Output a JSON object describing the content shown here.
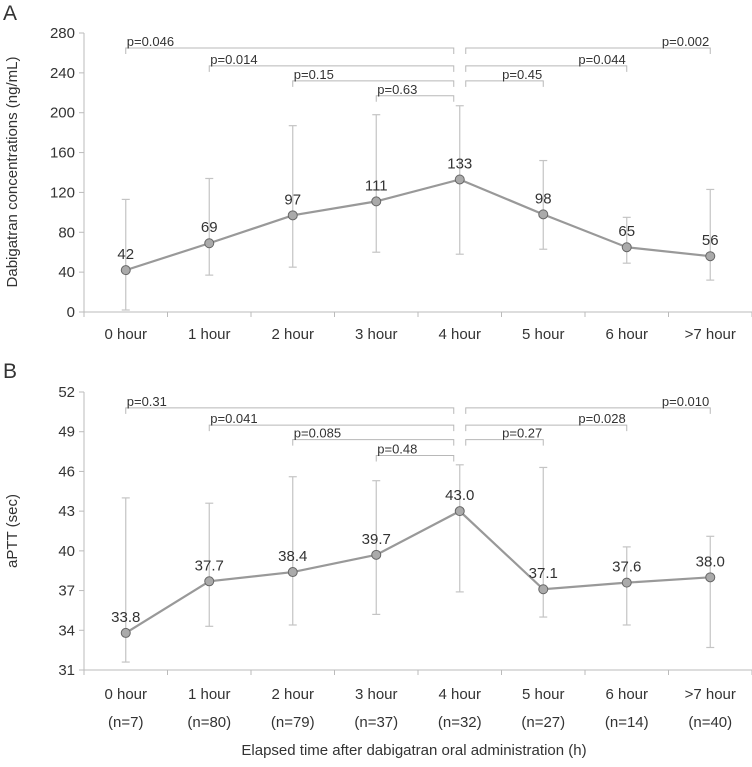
{
  "chart_data": [
    {
      "type": "line",
      "panel_label": "A",
      "ylabel": "Dabigatran concentrations  (ng/mL)",
      "ylim": [
        0,
        280
      ],
      "yticks": [
        0,
        40,
        80,
        120,
        160,
        200,
        240,
        280
      ],
      "categories": [
        "0 hour",
        "1 hour",
        "2 hour",
        "3 hour",
        "4 hour",
        "5 hour",
        "6 hour",
        ">7 hour"
      ],
      "values": [
        42,
        69,
        97,
        111,
        133,
        98,
        65,
        56
      ],
      "value_labels": [
        "42",
        "69",
        "97",
        "111",
        "133",
        "98",
        "65",
        "56"
      ],
      "error_low": [
        2,
        37,
        45,
        60,
        58,
        63,
        49,
        32
      ],
      "error_high": [
        113,
        134,
        187,
        198,
        207,
        152,
        95,
        123
      ],
      "comparisons": [
        {
          "from": 0,
          "to": 4,
          "label": "p=0.046",
          "level": 265
        },
        {
          "from": 1,
          "to": 4,
          "label": "p=0.014",
          "level": 247
        },
        {
          "from": 2,
          "to": 4,
          "label": "p=0.15",
          "level": 232
        },
        {
          "from": 3,
          "to": 4,
          "label": "p=0.63",
          "level": 217
        },
        {
          "from": 4,
          "to": 7,
          "label": "p=0.002",
          "level": 265
        },
        {
          "from": 4,
          "to": 6,
          "label": "p=0.044",
          "level": 247
        },
        {
          "from": 4,
          "to": 5,
          "label": "p=0.45",
          "level": 232
        }
      ]
    },
    {
      "type": "line",
      "panel_label": "B",
      "ylabel": "aPTT (sec)",
      "ylim": [
        31,
        52
      ],
      "yticks": [
        31,
        34,
        37,
        40,
        43,
        46,
        49,
        52
      ],
      "categories": [
        "0 hour",
        "1 hour",
        "2 hour",
        "3 hour",
        "4 hour",
        "5 hour",
        "6 hour",
        ">7 hour"
      ],
      "sample_sizes": [
        "(n=7)",
        "(n=80)",
        "(n=79)",
        "(n=37)",
        "(n=32)",
        "(n=27)",
        "(n=14)",
        "(n=40)"
      ],
      "values": [
        33.8,
        37.7,
        38.4,
        39.7,
        43.0,
        37.1,
        37.6,
        38.0
      ],
      "value_labels": [
        "33.8",
        "37.7",
        "38.4",
        "39.7",
        "43.0",
        "37.1",
        "37.6",
        "38.0"
      ],
      "error_low": [
        31.6,
        34.3,
        34.4,
        35.2,
        36.9,
        35.0,
        34.4,
        32.7
      ],
      "error_high": [
        44.0,
        43.6,
        45.6,
        45.3,
        46.5,
        46.3,
        40.3,
        41.1
      ],
      "comparisons": [
        {
          "from": 0,
          "to": 4,
          "label": "p=0.31",
          "level": 50.8
        },
        {
          "from": 1,
          "to": 4,
          "label": "p=0.041",
          "level": 49.5
        },
        {
          "from": 2,
          "to": 4,
          "label": "p=0.085",
          "level": 48.4
        },
        {
          "from": 3,
          "to": 4,
          "label": "p=0.48",
          "level": 47.2
        },
        {
          "from": 4,
          "to": 7,
          "label": "p=0.010",
          "level": 50.8
        },
        {
          "from": 4,
          "to": 6,
          "label": "p=0.028",
          "level": 49.5
        },
        {
          "from": 4,
          "to": 5,
          "label": "p=0.27",
          "level": 48.4
        }
      ]
    }
  ],
  "xlabel": "Elapsed time after dabigatran oral administration (h)",
  "colors": {
    "line": "#999999",
    "marker_fill": "#aaaaaa",
    "marker_stroke": "#666666",
    "error_bar": "#c4c4c4",
    "bracket": "#b8b8b8",
    "axis": "#bbbbbb",
    "text": "#333333"
  }
}
